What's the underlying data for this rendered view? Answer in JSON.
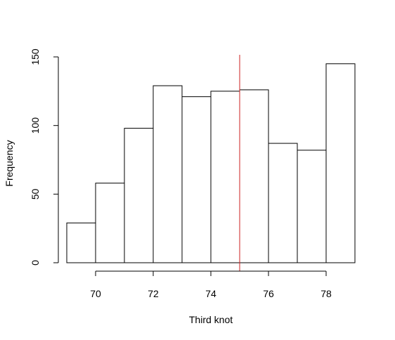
{
  "chart_data": {
    "type": "bar",
    "title": "",
    "xlabel": "Third knot",
    "ylabel": "Frequency",
    "bins": [
      {
        "start": 69,
        "end": 70,
        "value": 29
      },
      {
        "start": 70,
        "end": 71,
        "value": 58
      },
      {
        "start": 71,
        "end": 72,
        "value": 98
      },
      {
        "start": 72,
        "end": 73,
        "value": 129
      },
      {
        "start": 73,
        "end": 74,
        "value": 121
      },
      {
        "start": 74,
        "end": 75,
        "value": 125
      },
      {
        "start": 75,
        "end": 76,
        "value": 126
      },
      {
        "start": 76,
        "end": 77,
        "value": 87
      },
      {
        "start": 77,
        "end": 78,
        "value": 82
      },
      {
        "start": 78,
        "end": 79,
        "value": 145
      }
    ],
    "x_ticks": [
      "70",
      "72",
      "74",
      "76",
      "78"
    ],
    "y_ticks": [
      "0",
      "50",
      "100",
      "150"
    ],
    "xlim": [
      69,
      79
    ],
    "ylim": [
      0,
      150
    ],
    "vline": {
      "x": 75,
      "color": "#cc2222"
    },
    "bar_fill": "#ffffff",
    "bar_stroke": "#000000",
    "grid": false,
    "legend": "none"
  }
}
